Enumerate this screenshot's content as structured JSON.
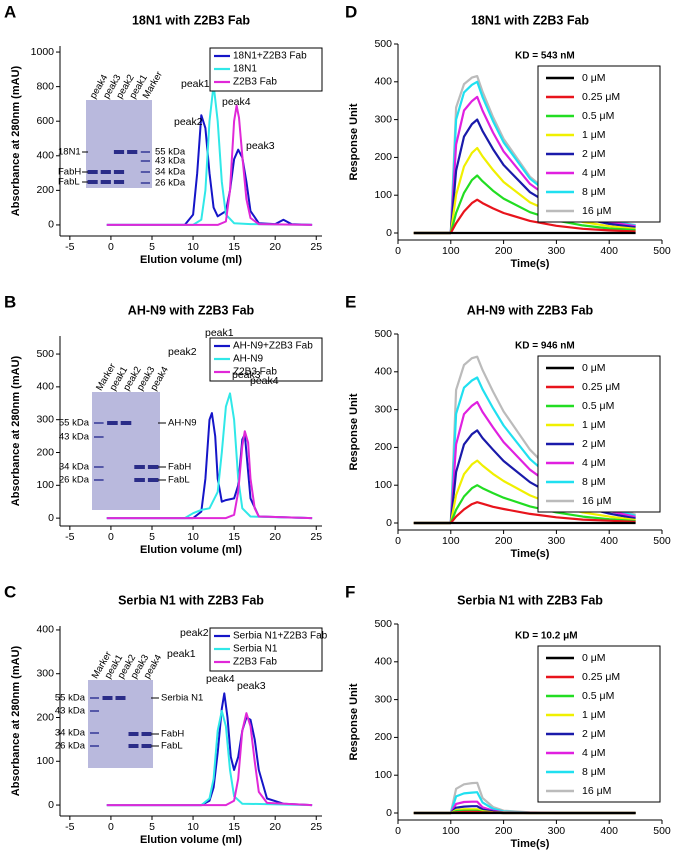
{
  "chart_data": [
    {
      "type": "line",
      "panel": "A",
      "title": "18N1 with Z2B3 Fab",
      "xlabel": "Elution volume (ml)",
      "ylabel": "Absorbance at 280nm (mAU)",
      "xlim": [
        -6.2,
        25.7
      ],
      "xticks": [
        -5,
        0,
        5,
        10,
        15,
        20,
        25
      ],
      "ylim": [
        -64,
        1035
      ],
      "yticks": [
        0,
        200,
        400,
        600,
        800,
        1000
      ],
      "legend": "upper right",
      "series": [
        {
          "name": "18N1+Z2B3 Fab",
          "color": "#1515c8",
          "x": [
            -0.5,
            9,
            10,
            10.5,
            11,
            11.5,
            12,
            12.5,
            13,
            14,
            14.5,
            15,
            15.5,
            16,
            16.5,
            17,
            18,
            20,
            21,
            22,
            24.5
          ],
          "values": [
            0,
            0,
            60,
            300,
            635,
            560,
            300,
            100,
            50,
            80,
            200,
            380,
            435,
            390,
            250,
            80,
            10,
            5,
            30,
            5,
            0
          ]
        },
        {
          "name": "18N1",
          "color": "#30e8e8",
          "x": [
            -0.5,
            10,
            11,
            11.5,
            12,
            12.5,
            13,
            13.5,
            14,
            15,
            17,
            24.5
          ],
          "values": [
            0,
            0,
            30,
            200,
            600,
            810,
            600,
            250,
            60,
            10,
            5,
            0
          ]
        },
        {
          "name": "Z2B3 Fab",
          "color": "#e028d8",
          "x": [
            -0.5,
            13,
            14,
            14.5,
            15,
            15.3,
            15.6,
            16,
            16.5,
            17,
            18,
            24.5
          ],
          "values": [
            0,
            0,
            20,
            200,
            600,
            690,
            620,
            400,
            150,
            40,
            5,
            0
          ]
        }
      ],
      "annotations": [
        "peak1",
        "peak2",
        "peak4",
        "peak3"
      ],
      "inset": {
        "lanes": [
          "peak4",
          "peak3",
          "peak2",
          "peak1",
          "Marker"
        ],
        "markers": [
          "55 kDa",
          "43 kDa",
          "34 kDa",
          "26 kDa"
        ],
        "proteins": [
          "18N1",
          "FabH",
          "FabL"
        ]
      }
    },
    {
      "type": "line",
      "panel": "B",
      "title": "AH-N9 with Z2B3 Fab",
      "xlabel": "Elution volume (ml)",
      "ylabel": "Absorbance at 280nm (mAU)",
      "xlim": [
        -6.2,
        25.7
      ],
      "xticks": [
        -5,
        0,
        5,
        10,
        15,
        20,
        25
      ],
      "ylim": [
        -24,
        555
      ],
      "yticks": [
        0,
        100,
        200,
        300,
        400,
        500
      ],
      "legend": "upper right",
      "series": [
        {
          "name": "AH-N9+Z2B3 Fab",
          "color": "#1515c8",
          "x": [
            -0.5,
            10,
            11,
            11.5,
            12,
            12.3,
            12.7,
            13,
            13.5,
            14,
            15,
            15.5,
            16,
            16.3,
            17,
            18,
            24.5
          ],
          "values": [
            0,
            0,
            20,
            120,
            300,
            320,
            250,
            120,
            50,
            55,
            60,
            100,
            240,
            255,
            60,
            5,
            0
          ]
        },
        {
          "name": "AH-N9",
          "color": "#30e8e8",
          "x": [
            -0.5,
            9,
            10,
            11,
            12,
            13,
            13.5,
            14,
            14.5,
            15,
            15.5,
            16,
            17,
            24.5
          ],
          "values": [
            0,
            0,
            15,
            25,
            30,
            80,
            200,
            340,
            380,
            300,
            120,
            30,
            5,
            0
          ]
        },
        {
          "name": "Z2B3 Fab",
          "color": "#e028d8",
          "x": [
            -0.5,
            14,
            15,
            15.5,
            16,
            16.3,
            16.7,
            17,
            17.5,
            18,
            24.5
          ],
          "values": [
            0,
            0,
            10,
            80,
            220,
            265,
            230,
            120,
            30,
            5,
            0
          ]
        }
      ],
      "annotations": [
        "peak1",
        "peak2",
        "peak3",
        "peak4"
      ],
      "inset": {
        "lanes": [
          "Marker",
          "peak1",
          "peak2",
          "peak3",
          "peak4"
        ],
        "markers": [
          "55 kDa",
          "43 kDa",
          "34 kDa",
          "26 kDa"
        ],
        "proteins": [
          "AH-N9",
          "FabH",
          "FabL"
        ]
      }
    },
    {
      "type": "line",
      "panel": "C",
      "title": "Serbia N1 with Z2B3 Fab",
      "xlabel": "Elution volume (ml)",
      "ylabel": "Absorbance at 280nm (mAU)",
      "xlim": [
        -6.2,
        25.7
      ],
      "xticks": [
        -5,
        0,
        5,
        10,
        15,
        20,
        25
      ],
      "ylim": [
        -25,
        409
      ],
      "yticks": [
        0,
        100,
        200,
        300,
        400
      ],
      "legend": "upper right",
      "series": [
        {
          "name": "Serbia N1+Z2B3 Fab",
          "color": "#1515c8",
          "x": [
            -0.5,
            11,
            12,
            12.5,
            13,
            13.5,
            13.8,
            14.2,
            14.6,
            15,
            15.5,
            16,
            16.5,
            17,
            17.5,
            18,
            19,
            21,
            24.5
          ],
          "values": [
            0,
            0,
            10,
            40,
            120,
            220,
            255,
            200,
            110,
            80,
            110,
            170,
            200,
            195,
            150,
            80,
            15,
            3,
            0
          ]
        },
        {
          "name": "Serbia N1",
          "color": "#30e8e8",
          "x": [
            -0.5,
            11,
            12,
            12.5,
            13,
            13.5,
            14,
            14.5,
            15,
            16,
            24.5
          ],
          "values": [
            0,
            0,
            15,
            60,
            170,
            215,
            180,
            80,
            20,
            3,
            0
          ]
        },
        {
          "name": "Z2B3 Fab",
          "color": "#e028d8",
          "x": [
            -0.5,
            14,
            15,
            15.5,
            16,
            16.5,
            17,
            17.5,
            18,
            19,
            24.5
          ],
          "values": [
            0,
            0,
            10,
            60,
            170,
            210,
            180,
            100,
            30,
            5,
            0
          ]
        }
      ],
      "annotations": [
        "peak2",
        "peak1",
        "peak4",
        "peak3"
      ],
      "inset": {
        "lanes": [
          "Marker",
          "peak1",
          "peak2",
          "peak3",
          "peak4"
        ],
        "markers": [
          "55 kDa",
          "43 kDa",
          "34 kDa",
          "26 kDa"
        ],
        "proteins": [
          "Serbia N1",
          "FabH",
          "FabL"
        ]
      }
    },
    {
      "type": "line",
      "panel": "D",
      "title": "18N1 with Z2B3 Fab",
      "xlabel": "Time(s)",
      "ylabel": "Response Unit",
      "annotation": "KD = 543 nM",
      "xlim": [
        0,
        500
      ],
      "xticks": [
        0,
        100,
        200,
        300,
        400,
        500
      ],
      "ylim": [
        -18.5,
        500
      ],
      "yticks": [
        0,
        100,
        200,
        300,
        400,
        500
      ],
      "legend": "upper right",
      "x": [
        30,
        98,
        100,
        110,
        125,
        140,
        150,
        160,
        180,
        200,
        250,
        300,
        350,
        400,
        450
      ],
      "series": [
        {
          "name": "0 μM",
          "color": "#000000",
          "values": [
            0,
            0,
            0,
            0,
            0,
            0,
            0,
            0,
            0,
            0,
            0,
            0,
            0,
            0,
            0
          ]
        },
        {
          "name": "0.25 μM",
          "color": "#e8141c",
          "values": [
            0,
            0,
            0,
            26,
            57,
            79,
            88,
            79,
            65,
            53,
            32,
            19,
            11,
            7,
            4
          ]
        },
        {
          "name": "0.5 μM",
          "color": "#22dd22",
          "values": [
            0,
            0,
            0,
            53,
            106,
            140,
            152,
            137,
            112,
            91,
            55,
            33,
            20,
            12,
            8
          ]
        },
        {
          "name": "1 μM",
          "color": "#f0f000",
          "values": [
            0,
            0,
            0,
            101,
            176,
            212,
            225,
            203,
            167,
            135,
            81,
            50,
            29,
            18,
            11
          ]
        },
        {
          "name": "2 μM",
          "color": "#1a1aaa",
          "values": [
            0,
            0,
            0,
            165,
            255,
            288,
            300,
            270,
            222,
            180,
            108,
            66,
            39,
            24,
            15
          ]
        },
        {
          "name": "4 μM",
          "color": "#e020e0",
          "values": [
            0,
            0,
            0,
            234,
            324,
            349,
            360,
            324,
            266,
            216,
            130,
            79,
            47,
            29,
            18
          ]
        },
        {
          "name": "8 μM",
          "color": "#20e0f0",
          "values": [
            0,
            0,
            0,
            300,
            372,
            392,
            400,
            360,
            296,
            240,
            144,
            88,
            52,
            32,
            20
          ]
        },
        {
          "name": "16 μM",
          "color": "#bbbbbb",
          "values": [
            0,
            0,
            0,
            332,
            394,
            411,
            415,
            374,
            307,
            249,
            149,
            91,
            54,
            33,
            21
          ]
        }
      ]
    },
    {
      "type": "line",
      "panel": "E",
      "title": "AH-N9 with Z2B3 Fab",
      "xlabel": "Time(s)",
      "ylabel": "Response Unit",
      "annotation": "KD = 946 nM",
      "xlim": [
        0,
        500
      ],
      "xticks": [
        0,
        100,
        200,
        300,
        400,
        500
      ],
      "ylim": [
        -18.5,
        500
      ],
      "yticks": [
        0,
        100,
        200,
        300,
        400,
        500
      ],
      "legend": "upper right",
      "x": [
        30,
        98,
        100,
        110,
        125,
        140,
        150,
        160,
        180,
        200,
        250,
        300,
        350,
        400,
        450
      ],
      "series": [
        {
          "name": "0 μM",
          "color": "#000000",
          "values": [
            0,
            0,
            0,
            0,
            0,
            0,
            0,
            0,
            0,
            0,
            0,
            0,
            0,
            0,
            0
          ]
        },
        {
          "name": "0.25 μM",
          "color": "#e8141c",
          "values": [
            0,
            0,
            0,
            17,
            36,
            50,
            55,
            51,
            43,
            37,
            24,
            15,
            9,
            6,
            3
          ]
        },
        {
          "name": "0.5 μM",
          "color": "#22dd22",
          "values": [
            0,
            0,
            0,
            35,
            70,
            92,
            100,
            92,
            79,
            67,
            44,
            28,
            17,
            10,
            5
          ]
        },
        {
          "name": "1 μM",
          "color": "#f0f000",
          "values": [
            0,
            0,
            0,
            74,
            129,
            155,
            165,
            152,
            130,
            111,
            73,
            46,
            28,
            17,
            8
          ]
        },
        {
          "name": "2 μM",
          "color": "#1a1aaa",
          "values": [
            0,
            0,
            0,
            135,
            208,
            235,
            245,
            225,
            194,
            164,
            108,
            69,
            42,
            25,
            12
          ]
        },
        {
          "name": "4 μM",
          "color": "#e020e0",
          "values": [
            0,
            0,
            0,
            208,
            288,
            310,
            320,
            294,
            253,
            214,
            141,
            90,
            54,
            32,
            16
          ]
        },
        {
          "name": "8 μM",
          "color": "#20e0f0",
          "values": [
            0,
            0,
            0,
            289,
            358,
            377,
            385,
            354,
            304,
            258,
            169,
            108,
            65,
            39,
            19
          ]
        },
        {
          "name": "16 μM",
          "color": "#bbbbbb",
          "values": [
            0,
            0,
            0,
            352,
            418,
            436,
            440,
            405,
            348,
            295,
            194,
            123,
            75,
            44,
            22
          ]
        }
      ]
    },
    {
      "type": "line",
      "panel": "F",
      "title": "Serbia N1 with Z2B3 Fab",
      "xlabel": "Time(s)",
      "ylabel": "Response Unit",
      "annotation": "KD = 10.2 μM",
      "xlim": [
        0,
        500
      ],
      "xticks": [
        0,
        100,
        200,
        300,
        400,
        500
      ],
      "ylim": [
        -18.5,
        500
      ],
      "yticks": [
        0,
        100,
        200,
        300,
        400,
        500
      ],
      "legend": "upper right",
      "x": [
        30,
        98,
        100,
        110,
        125,
        140,
        150,
        160,
        180,
        200,
        250,
        300,
        350,
        400,
        450
      ],
      "series": [
        {
          "name": "0 μM",
          "color": "#000000",
          "values": [
            0,
            0,
            0,
            0,
            0,
            0,
            0,
            0,
            0,
            0,
            0,
            0,
            0,
            0,
            0
          ]
        },
        {
          "name": "0.25 μM",
          "color": "#e8141c",
          "values": [
            0,
            0,
            0,
            2,
            3,
            3,
            3,
            2,
            1,
            0,
            0,
            0,
            0,
            0,
            0
          ]
        },
        {
          "name": "0.5 μM",
          "color": "#22dd22",
          "values": [
            0,
            0,
            0,
            5,
            6,
            6,
            6,
            3,
            1,
            0,
            0,
            0,
            0,
            0,
            0
          ]
        },
        {
          "name": "1 μM",
          "color": "#f0f000",
          "values": [
            0,
            0,
            0,
            8,
            10,
            10,
            10,
            5,
            2,
            1,
            0,
            0,
            0,
            0,
            0
          ]
        },
        {
          "name": "2 μM",
          "color": "#1a1aaa",
          "values": [
            0,
            0,
            0,
            14,
            17,
            18,
            18,
            9,
            4,
            1,
            0,
            0,
            0,
            0,
            0
          ]
        },
        {
          "name": "4 μM",
          "color": "#e020e0",
          "values": [
            0,
            0,
            0,
            24,
            29,
            30,
            30,
            15,
            6,
            2,
            1,
            0,
            0,
            0,
            0
          ]
        },
        {
          "name": "8 μM",
          "color": "#20e0f0",
          "values": [
            0,
            0,
            0,
            44,
            52,
            54,
            55,
            28,
            11,
            4,
            1,
            0,
            0,
            0,
            0
          ]
        },
        {
          "name": "16 μM",
          "color": "#bbbbbb",
          "values": [
            0,
            0,
            0,
            64,
            76,
            79,
            80,
            40,
            16,
            6,
            2,
            0,
            0,
            0,
            0
          ]
        }
      ]
    }
  ]
}
